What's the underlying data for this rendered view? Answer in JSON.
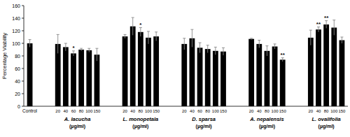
{
  "chart_data": {
    "type": "bar",
    "y_label": "Percentage Viability",
    "categories": [
      "Control",
      "20",
      "40",
      "60",
      "80",
      "100",
      "150",
      "20",
      "40",
      "80",
      "100",
      "150",
      "20",
      "40",
      "60",
      "80",
      "100",
      "150",
      "20",
      "40",
      "80",
      "100",
      "150",
      "20",
      "40",
      "80",
      "100",
      "150"
    ],
    "values": [
      100,
      99,
      94,
      84,
      90,
      89,
      82,
      111,
      127,
      118,
      109,
      111,
      99,
      108,
      93,
      91,
      88,
      87,
      107,
      99,
      88,
      95,
      74,
      109,
      122,
      130,
      125,
      105
    ],
    "errors": [
      6,
      15,
      6,
      4,
      2,
      3,
      10,
      3,
      14,
      7,
      10,
      7,
      9,
      14,
      8,
      6,
      6,
      6,
      1,
      6,
      8,
      4,
      3,
      12,
      4,
      6,
      12,
      5
    ],
    "significance": [
      null,
      null,
      null,
      "*",
      null,
      null,
      null,
      null,
      null,
      "*",
      null,
      null,
      null,
      null,
      null,
      null,
      null,
      null,
      null,
      null,
      null,
      null,
      "**",
      null,
      "**",
      "**",
      null,
      null
    ],
    "groups": [
      {
        "label": "A. lacucha",
        "unit": "(µg/ml)",
        "size": 6
      },
      {
        "label": "L. monopetala",
        "unit": "(µg/ml)",
        "size": 5
      },
      {
        "label": "D. sparsa",
        "unit": "(µg/ml)",
        "size": 6
      },
      {
        "label": "A. nepalensis",
        "unit": "(µg/ml)",
        "size": 5
      },
      {
        "label": "L. ovalifolia",
        "unit": "(µg/ml)",
        "size": 5
      }
    ],
    "color": "#000000",
    "ylim": [
      0,
      160
    ],
    "yticks": [
      0,
      20,
      40,
      60,
      80,
      100,
      120,
      140,
      160
    ],
    "grid": false
  }
}
